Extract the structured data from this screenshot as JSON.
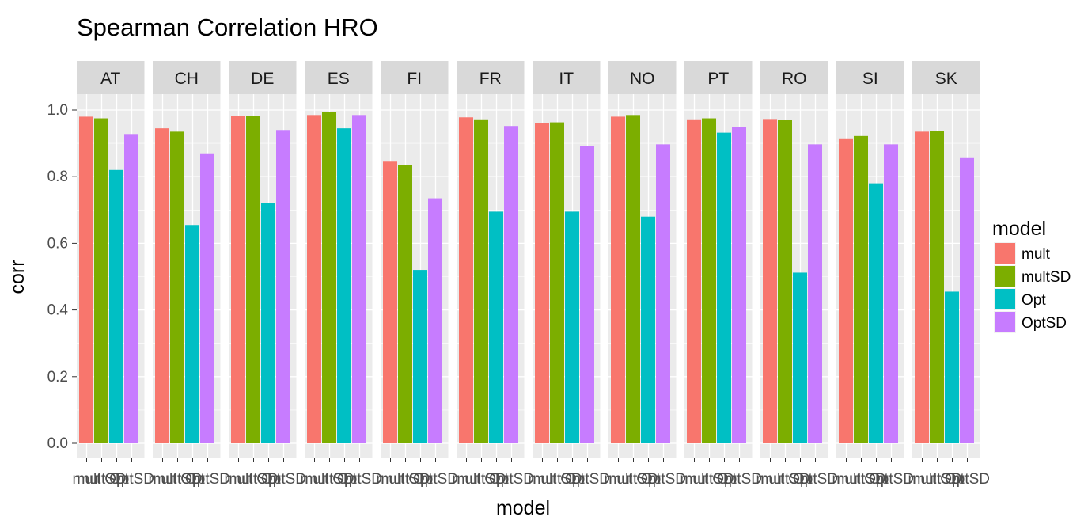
{
  "chart_data": {
    "type": "bar",
    "title": "Spearman Correlation HRO",
    "xlabel": "model",
    "ylabel": "corr",
    "ylim": [
      0,
      1.05
    ],
    "yticks": [
      "0.0",
      "0.2",
      "0.4",
      "0.6",
      "0.8",
      "1.0"
    ],
    "facets": [
      "AT",
      "CH",
      "DE",
      "ES",
      "FI",
      "FR",
      "IT",
      "NO",
      "PT",
      "RO",
      "SI",
      "SK"
    ],
    "categories": [
      "mult",
      "multSD",
      "Opt",
      "OptSD"
    ],
    "colors": {
      "mult": "#F8766D",
      "multSD": "#7CAE00",
      "Opt": "#00BFC4",
      "OptSD": "#C77CFF",
      "panel_bg": "#EBEBEB",
      "strip_bg": "#D9D9D9",
      "grid": "#FFFFFF"
    },
    "grid": true,
    "legend": {
      "title": "model",
      "position": "right",
      "items": [
        "mult",
        "multSD",
        "Opt",
        "OptSD"
      ]
    },
    "series": [
      {
        "facet": "AT",
        "values": [
          0.98,
          0.975,
          0.82,
          0.928
        ]
      },
      {
        "facet": "CH",
        "values": [
          0.945,
          0.935,
          0.655,
          0.87
        ]
      },
      {
        "facet": "DE",
        "values": [
          0.983,
          0.983,
          0.72,
          0.94
        ]
      },
      {
        "facet": "ES",
        "values": [
          0.985,
          0.995,
          0.945,
          0.985
        ]
      },
      {
        "facet": "FI",
        "values": [
          0.845,
          0.835,
          0.52,
          0.735
        ]
      },
      {
        "facet": "FR",
        "values": [
          0.978,
          0.972,
          0.695,
          0.952
        ]
      },
      {
        "facet": "IT",
        "values": [
          0.96,
          0.963,
          0.695,
          0.893
        ]
      },
      {
        "facet": "NO",
        "values": [
          0.98,
          0.985,
          0.68,
          0.897
        ]
      },
      {
        "facet": "PT",
        "values": [
          0.972,
          0.975,
          0.932,
          0.95
        ]
      },
      {
        "facet": "RO",
        "values": [
          0.973,
          0.97,
          0.512,
          0.897
        ]
      },
      {
        "facet": "SI",
        "values": [
          0.915,
          0.922,
          0.78,
          0.897
        ]
      },
      {
        "facet": "SK",
        "values": [
          0.935,
          0.937,
          0.455,
          0.858
        ]
      }
    ]
  }
}
